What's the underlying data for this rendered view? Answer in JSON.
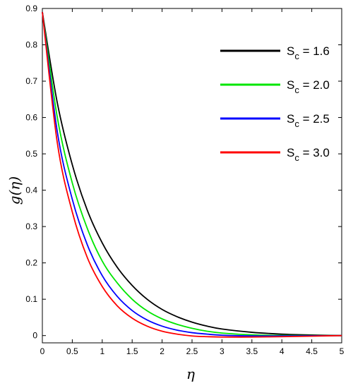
{
  "chart_data": {
    "type": "line",
    "xlabel": "η",
    "ylabel": "g(η)",
    "xlim": [
      0,
      5
    ],
    "ylim": [
      -0.02,
      0.9
    ],
    "xticks": [
      "0",
      "0.5",
      "1",
      "1.5",
      "2",
      "2.5",
      "3",
      "3.5",
      "4",
      "4.5",
      "5"
    ],
    "yticks": [
      "0",
      "0.1",
      "0.2",
      "0.3",
      "0.4",
      "0.5",
      "0.6",
      "0.7",
      "0.8",
      "0.9"
    ],
    "grid": false,
    "legend_position": "top-right",
    "x": [
      0,
      0.25,
      0.5,
      0.75,
      1,
      1.25,
      1.5,
      1.75,
      2,
      2.25,
      2.5,
      2.75,
      3,
      3.5,
      4,
      4.5,
      5
    ],
    "series": [
      {
        "name": "S",
        "name_sub": "c",
        "name_value": " = 1.6",
        "color": "#000000",
        "values": [
          0.89,
          0.64,
          0.47,
          0.345,
          0.255,
          0.188,
          0.138,
          0.1,
          0.072,
          0.052,
          0.037,
          0.026,
          0.018,
          0.009,
          0.004,
          0.0015,
          0.0
        ]
      },
      {
        "name": "S",
        "name_sub": "c",
        "name_value": " = 2.0",
        "color": "#00e600",
        "values": [
          0.89,
          0.6,
          0.42,
          0.295,
          0.205,
          0.145,
          0.1,
          0.068,
          0.046,
          0.031,
          0.02,
          0.012,
          0.007,
          0.002,
          0.0005,
          0.0,
          0.0
        ]
      },
      {
        "name": "S",
        "name_sub": "c",
        "name_value": " = 2.5",
        "color": "#0000ff",
        "values": [
          0.89,
          0.56,
          0.375,
          0.25,
          0.165,
          0.108,
          0.069,
          0.043,
          0.026,
          0.015,
          0.008,
          0.004,
          0.001,
          -0.001,
          -0.001,
          -0.0005,
          0.0
        ]
      },
      {
        "name": "S",
        "name_sub": "c",
        "name_value": " = 3.0",
        "color": "#ff0000",
        "values": [
          0.89,
          0.53,
          0.34,
          0.215,
          0.135,
          0.082,
          0.048,
          0.026,
          0.012,
          0.004,
          -0.001,
          -0.003,
          -0.004,
          -0.004,
          -0.003,
          -0.0015,
          0.0
        ]
      }
    ]
  }
}
